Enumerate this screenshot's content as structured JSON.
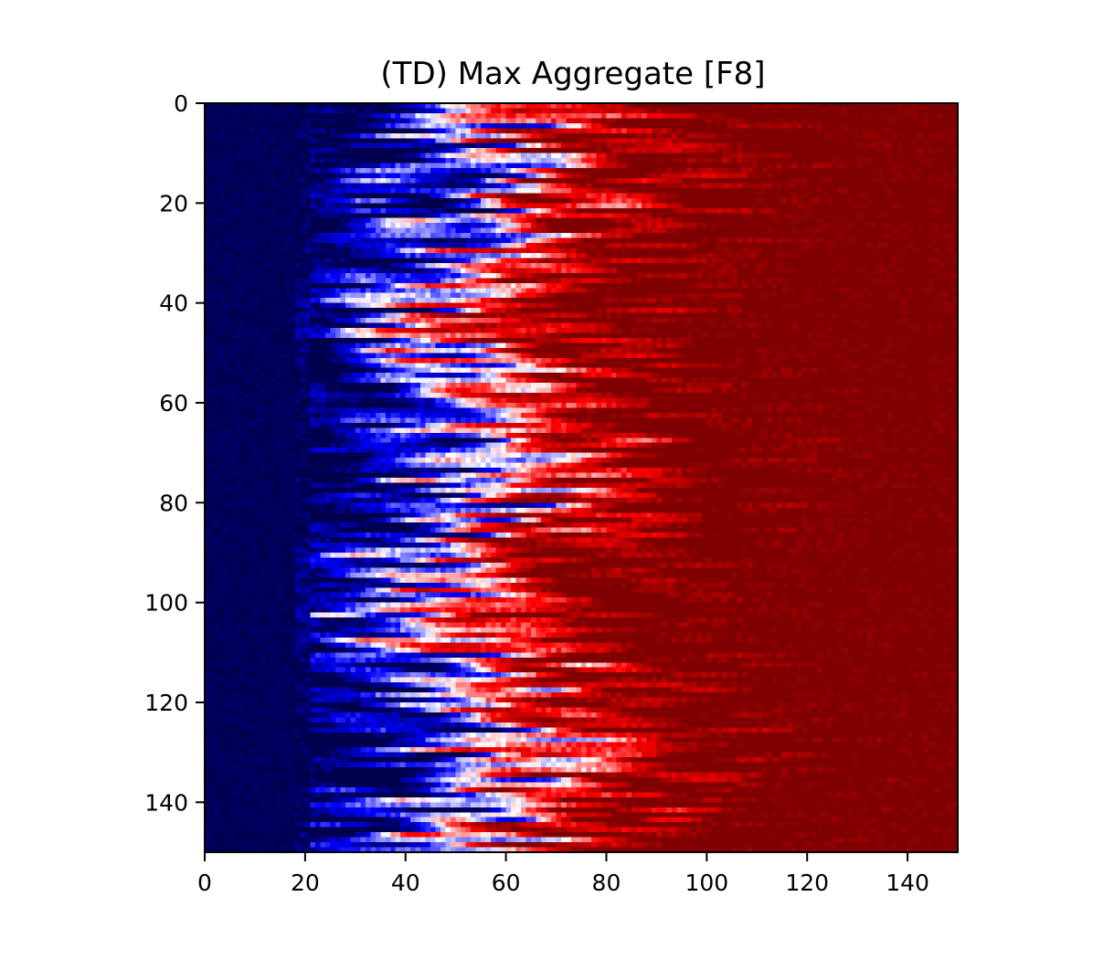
{
  "chart_data": {
    "type": "heatmap",
    "title": "(TD) Max Aggregate [F8]",
    "xlabel": "",
    "ylabel": "",
    "xlim": [
      0,
      150
    ],
    "ylim": [
      150,
      0
    ],
    "rows": 150,
    "cols": 150,
    "colormap": "seismic",
    "colormap_stops": [
      "#00004c",
      "#0000ff",
      "#ffffff",
      "#ff0000",
      "#7f0000"
    ],
    "grid": false,
    "xticks": [
      0,
      20,
      40,
      60,
      80,
      100,
      120,
      140
    ],
    "yticks": [
      0,
      20,
      40,
      60,
      80,
      100,
      120,
      140
    ],
    "xtick_labels": [
      "0",
      "20",
      "40",
      "60",
      "80",
      "100",
      "120",
      "140"
    ],
    "ytick_labels": [
      "0",
      "20",
      "40",
      "60",
      "80",
      "100",
      "120",
      "140"
    ],
    "pattern_description": "Values rise from deep negative (dark blue) at low x to strong positive (dark red) at high x; a noisy blue/white/red transition band spans roughly x = 20 to 90, with horizontal streaks along rows."
  }
}
